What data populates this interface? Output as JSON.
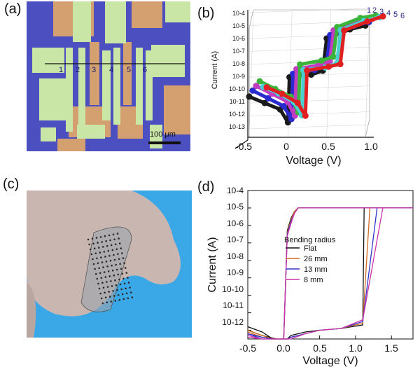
{
  "panels": {
    "a": {
      "label": "(a)",
      "electrode_numbers": [
        "1",
        "2",
        "3",
        "4",
        "5",
        "6"
      ],
      "scale_bar": "100 μm",
      "colors": {
        "substrate": "#4b4fc0",
        "gold": "#d4a070",
        "film": "#c9e6a7"
      }
    },
    "b": {
      "label": "(b)",
      "xlabel": "Voltage (V)",
      "ylabel": "Current (A)",
      "x_ticks": [
        "-0.5",
        "0",
        "0.5",
        "1.0"
      ],
      "y_ticks": [
        "10-4",
        "10-5",
        "10-6",
        "10-7",
        "10-8",
        "10-9",
        "10-10",
        "10-11",
        "10-12",
        "10-13"
      ],
      "depth_labels": [
        "1",
        "2",
        "3",
        "4",
        "5",
        "6"
      ]
    },
    "c": {
      "label": "(c)",
      "colors": {
        "background": "#3aa7e6",
        "hand": "#c9b6b0"
      }
    },
    "d": {
      "label": "(d)",
      "xlabel": "Voltage (V)",
      "ylabel": "Current (A)",
      "legend_title": "Bending radius",
      "x_ticks": [
        "-0.5",
        "0.0",
        "0.5",
        "1.0",
        "1.5"
      ],
      "y_ticks": [
        "10-4",
        "10-5",
        "10-6",
        "10-7",
        "10-8",
        "10-9",
        "10-10",
        "10-11",
        "10-12"
      ]
    }
  },
  "chart_data": [
    {
      "panel": "b",
      "type": "line",
      "xlabel": "Voltage (V)",
      "ylabel": "Current (A)",
      "xlim": [
        -0.5,
        1.0
      ],
      "ylim_log10": [
        -13,
        -4
      ],
      "yscale": "log",
      "grid": true,
      "series": [
        {
          "color": "#1a1a1a",
          "x": [
            -0.5,
            -0.3,
            -0.1,
            0.0,
            0.02,
            0.3,
            0.45,
            0.5,
            0.8,
            1.0
          ],
          "y_log10": [
            -10.5,
            -11.0,
            -11.5,
            -12.5,
            -9.0,
            -8.8,
            -8.5,
            -6.0,
            -5.3,
            -5.0
          ]
        },
        {
          "color": "#2a2ad0",
          "x": [
            -0.5,
            -0.3,
            -0.1,
            0.0,
            0.02,
            0.3,
            0.45,
            0.5,
            0.8,
            1.0
          ],
          "y_log10": [
            -10.2,
            -10.8,
            -11.4,
            -12.4,
            -8.9,
            -8.6,
            -8.3,
            -5.9,
            -5.2,
            -4.9
          ]
        },
        {
          "color": "#c23cc2",
          "x": [
            -0.5,
            -0.3,
            -0.1,
            0.0,
            0.02,
            0.3,
            0.45,
            0.5,
            0.8,
            1.0
          ],
          "y_log10": [
            -10.0,
            -10.6,
            -11.2,
            -12.3,
            -8.7,
            -8.4,
            -8.1,
            -5.7,
            -5.0,
            -4.8
          ]
        },
        {
          "color": "#3cb43c",
          "x": [
            -0.5,
            -0.3,
            -0.1,
            0.0,
            0.02,
            0.3,
            0.45,
            0.5,
            0.8,
            1.0
          ],
          "y_log10": [
            -9.8,
            -10.4,
            -11.0,
            -12.2,
            -8.5,
            -8.2,
            -7.9,
            -5.6,
            -4.9,
            -4.7
          ]
        },
        {
          "color": "#4ad0d0",
          "x": [
            -0.5,
            -0.3,
            -0.1,
            0.0,
            0.02,
            0.3,
            0.45,
            0.5,
            0.8,
            1.0
          ],
          "y_log10": [
            -10.4,
            -10.9,
            -11.6,
            -12.6,
            -9.1,
            -8.9,
            -8.6,
            -6.0,
            -5.3,
            -5.0
          ]
        },
        {
          "color": "#e02020",
          "x": [
            -0.5,
            -0.3,
            -0.1,
            0.0,
            0.02,
            0.3,
            0.45,
            0.5,
            0.8,
            1.0
          ],
          "y_log10": [
            -10.6,
            -11.1,
            -11.8,
            -12.8,
            -9.3,
            -9.0,
            -8.8,
            -6.2,
            -5.5,
            -5.1
          ]
        }
      ]
    },
    {
      "panel": "d",
      "type": "line",
      "xlabel": "Voltage (V)",
      "ylabel": "Current (A)",
      "xlim": [
        -0.5,
        1.8
      ],
      "ylim_log10": [
        -13,
        -4
      ],
      "yscale": "log",
      "legend": "center-right",
      "legend_title": "Bending radius",
      "series": [
        {
          "name": "Flat",
          "color": "#111111",
          "x": [
            -0.5,
            -0.3,
            -0.15,
            -0.05,
            0.0,
            0.05,
            0.1,
            0.3,
            0.5,
            0.8,
            1.1,
            1.12,
            1.8,
            1.3,
            1.2,
            0.8,
            0.5,
            0.3,
            0.2,
            0.15,
            0.1,
            0.05,
            0.0,
            -0.1,
            -0.3,
            -0.5
          ],
          "y_log10": [
            -11.8,
            -12.1,
            -12.6,
            -12.9,
            -12.6,
            -12.5,
            -12.3,
            -12.1,
            -12.0,
            -11.9,
            -11.7,
            -5.0,
            -5.0,
            -5.0,
            -5.0,
            -5.0,
            -5.0,
            -5.0,
            -5.0,
            -5.2,
            -5.6,
            -6.3,
            -12.9,
            -12.7,
            -12.3,
            -12.0
          ]
        },
        {
          "name": "26 mm",
          "color": "#d2691e",
          "x": [
            -0.5,
            -0.3,
            -0.15,
            -0.05,
            0.0,
            0.05,
            0.1,
            0.3,
            0.5,
            0.8,
            1.1,
            1.2,
            1.8,
            1.3,
            1.2,
            0.8,
            0.5,
            0.3,
            0.2,
            0.15,
            0.1,
            0.05,
            0.0,
            -0.1,
            -0.3,
            -0.5
          ],
          "y_log10": [
            -12.0,
            -12.3,
            -12.8,
            -13.0,
            -12.7,
            -12.6,
            -12.4,
            -12.2,
            -12.0,
            -11.9,
            -11.6,
            -5.0,
            -5.0,
            -5.0,
            -5.0,
            -5.0,
            -5.0,
            -5.0,
            -5.0,
            -5.2,
            -5.7,
            -6.4,
            -12.9,
            -12.8,
            -12.4,
            -12.1
          ]
        },
        {
          "name": "13 mm",
          "color": "#3333cc",
          "x": [
            -0.5,
            -0.3,
            -0.15,
            -0.05,
            0.0,
            0.05,
            0.1,
            0.3,
            0.5,
            0.8,
            1.1,
            1.3,
            1.8,
            1.35,
            1.2,
            0.8,
            0.5,
            0.3,
            0.2,
            0.15,
            0.1,
            0.05,
            0.0,
            -0.1,
            -0.3,
            -0.5
          ],
          "y_log10": [
            -12.2,
            -12.4,
            -12.9,
            -13.0,
            -12.8,
            -12.6,
            -12.4,
            -12.2,
            -12.0,
            -11.9,
            -11.5,
            -5.0,
            -5.0,
            -5.0,
            -5.0,
            -5.0,
            -5.0,
            -5.0,
            -5.0,
            -5.3,
            -5.8,
            -6.5,
            -13.0,
            -12.9,
            -12.5,
            -12.2
          ]
        },
        {
          "name": "8 mm",
          "color": "#cc33aa",
          "x": [
            -0.5,
            -0.3,
            -0.15,
            -0.05,
            0.0,
            0.05,
            0.1,
            0.3,
            0.5,
            0.8,
            1.1,
            1.38,
            1.8,
            1.4,
            1.2,
            0.8,
            0.5,
            0.3,
            0.2,
            0.15,
            0.1,
            0.05,
            0.0,
            -0.1,
            -0.3,
            -0.5
          ],
          "y_log10": [
            -12.4,
            -12.6,
            -13.0,
            -13.0,
            -12.9,
            -12.7,
            -12.5,
            -12.2,
            -12.0,
            -11.9,
            -11.4,
            -5.0,
            -5.0,
            -5.0,
            -5.0,
            -5.0,
            -5.0,
            -5.0,
            -5.0,
            -5.3,
            -5.9,
            -6.6,
            -13.0,
            -12.9,
            -12.6,
            -12.3
          ]
        }
      ]
    }
  ]
}
